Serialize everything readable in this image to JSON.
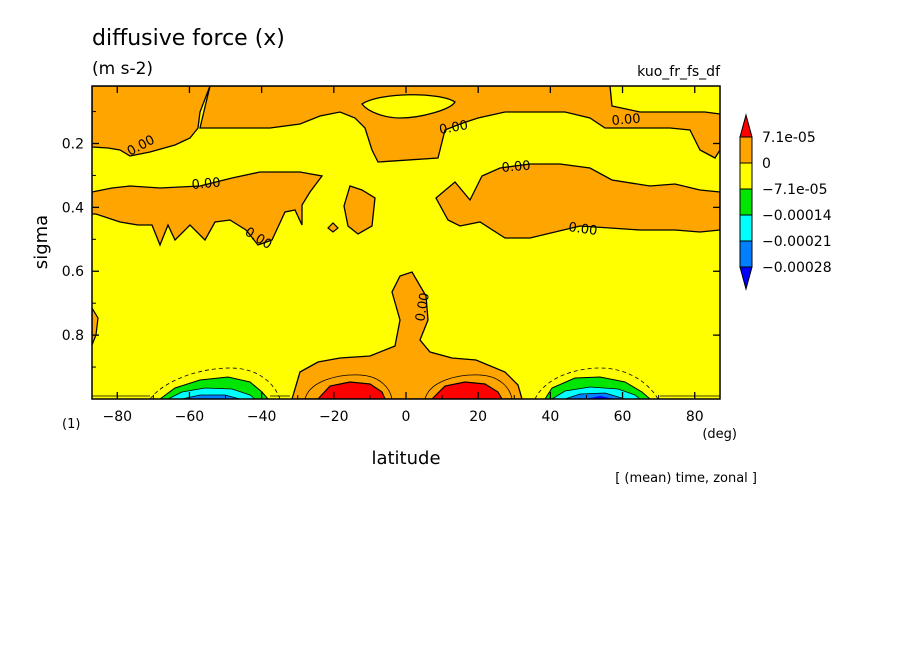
{
  "chart_data": {
    "type": "contour",
    "title": "diffusive force (x)",
    "units": "(m s-2)",
    "variable_id": "kuo_fr_fs_df",
    "xlabel": "latitude",
    "xunit": "(deg)",
    "ylabel": "sigma",
    "panel_label": "(1)",
    "footer": "[ (mean) time, zonal ]",
    "xlim": [
      -87,
      87
    ],
    "ylim": [
      1.0,
      0.02
    ],
    "x_ticks": [
      -80,
      -60,
      -40,
      -20,
      0,
      20,
      40,
      60,
      80
    ],
    "x_tick_labels": [
      "−80",
      "−60",
      "−40",
      "−20",
      "0",
      "20",
      "40",
      "60",
      "80"
    ],
    "y_ticks": [
      0.2,
      0.4,
      0.6,
      0.8
    ],
    "y_tick_labels": [
      "0.2",
      "0.4",
      "0.6",
      "0.8"
    ],
    "contour_labels": [
      "0.00",
      "0.00",
      "0.00",
      "0.00",
      "0.00",
      "0.00",
      "0.00",
      "0.00"
    ],
    "colorbar": {
      "labels": [
        "7.1e-05",
        "0",
        "−7.1e-05",
        "−0.00014",
        "−0.00021",
        "−0.00028"
      ],
      "colors": [
        "#ff0000",
        "#ffa500",
        "#ffff00",
        "#00e600",
        "#00ffff",
        "#0080ff",
        "#0000ff"
      ]
    }
  }
}
